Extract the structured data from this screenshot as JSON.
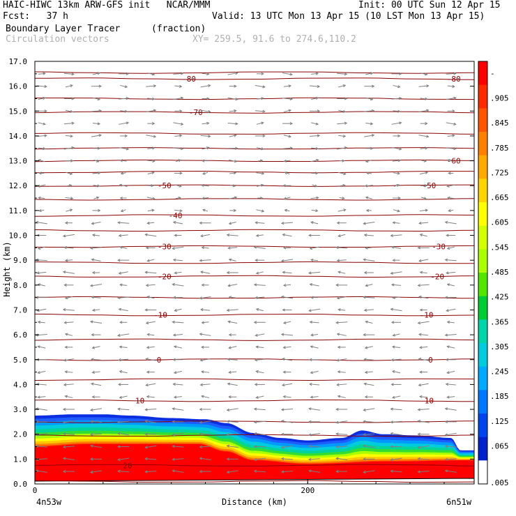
{
  "header": {
    "line1_left": "HAIC-HIWC 13km ARW-GFS init   NCAR/MMM",
    "line1_right": "Init: 00 UTC Sun 12 Apr 15",
    "line2_left": "Fcst:   37 h",
    "line2_right": "Valid: 13 UTC Mon 13 Apr 15 (10 LST Mon 13 Apr 15)",
    "line3_left": "Boundary Layer Tracer",
    "line3_mid": "(fraction)",
    "line4_left": "Circulation vectors",
    "line4_mid": "XY= 259.5, 91.6 to 274.6,110.2"
  },
  "colors": {
    "frame": "#000000",
    "isotherm": "#8b0000",
    "vector": "#7f7f7f",
    "labels": "#000000"
  },
  "chart_data": {
    "type": "heatmap",
    "title": "Boundary Layer Tracer",
    "units": "(fraction)",
    "xlabel": "Distance (km)",
    "ylabel": "Height (km)",
    "x_ticks": [
      {
        "value": 0,
        "label": "0"
      },
      {
        "value": 200,
        "label": "200"
      }
    ],
    "xlim": [
      0,
      322
    ],
    "x_end_labels": {
      "left": "4n53w",
      "right": "6n51w"
    },
    "ylim": [
      0,
      17
    ],
    "y_ticks": [
      0,
      1,
      2,
      3,
      4,
      5,
      6,
      7,
      8,
      9,
      10,
      11,
      12,
      13,
      14,
      15,
      16,
      17
    ],
    "y_tick_labels": [
      "0.0",
      "1.0",
      "2.0",
      "3.0",
      "4.0",
      "5.0",
      "6.0",
      "7.0",
      "8.0",
      "9.0",
      "10.0",
      "11.0",
      "12.0",
      "13.0",
      "14.0",
      "15.0",
      "16.0",
      "17.0"
    ],
    "colorbar": {
      "labels": [
        "-",
        ".905",
        ".845",
        ".785",
        ".725",
        ".665",
        ".605",
        ".545",
        ".485",
        ".425",
        ".365",
        ".305",
        ".245",
        ".185",
        ".125",
        ".065",
        ".005"
      ],
      "colors": [
        "#ff0000",
        "#ff2a00",
        "#ff5500",
        "#ff7f00",
        "#ffaa00",
        "#ffd400",
        "#ffff00",
        "#d4ff00",
        "#aaff00",
        "#55e600",
        "#00cc33",
        "#00d4aa",
        "#00ccdd",
        "#00aaff",
        "#0077ff",
        "#0044ee",
        "#0022cc",
        "#ffffff"
      ]
    },
    "boundary_layer_top": [
      {
        "x": 0,
        "y": 2.75
      },
      {
        "x": 30,
        "y": 2.8
      },
      {
        "x": 50,
        "y": 2.8
      },
      {
        "x": 70,
        "y": 2.75
      },
      {
        "x": 100,
        "y": 2.65
      },
      {
        "x": 125,
        "y": 2.6
      },
      {
        "x": 140,
        "y": 2.45
      },
      {
        "x": 160,
        "y": 2.05
      },
      {
        "x": 180,
        "y": 1.85
      },
      {
        "x": 200,
        "y": 1.75
      },
      {
        "x": 225,
        "y": 1.85
      },
      {
        "x": 240,
        "y": 2.15
      },
      {
        "x": 255,
        "y": 2.0
      },
      {
        "x": 280,
        "y": 1.95
      },
      {
        "x": 305,
        "y": 1.85
      },
      {
        "x": 312,
        "y": 1.35
      },
      {
        "x": 322,
        "y": 1.35
      }
    ],
    "high_tracer_top": [
      {
        "x": 0,
        "y": 1.5
      },
      {
        "x": 40,
        "y": 1.6
      },
      {
        "x": 90,
        "y": 1.6
      },
      {
        "x": 120,
        "y": 1.6
      },
      {
        "x": 140,
        "y": 1.3
      },
      {
        "x": 160,
        "y": 0.95
      },
      {
        "x": 200,
        "y": 0.8
      },
      {
        "x": 260,
        "y": 0.9
      },
      {
        "x": 322,
        "y": 0.95
      }
    ],
    "isotherms": [
      {
        "value": 20,
        "label": "20",
        "y_left": 0.75,
        "y_right": 0.75,
        "label_x": 68
      },
      {
        "value": 10,
        "label": "10",
        "y_left": 3.35,
        "y_right": 3.35,
        "label_x": 77
      },
      {
        "value": 10,
        "label": "10",
        "y_left": 3.35,
        "y_right": 3.35,
        "label_x": 289
      },
      {
        "value": 0,
        "label": "0",
        "y_left": 5.0,
        "y_right": 5.0,
        "label_x": 91
      },
      {
        "value": 0,
        "label": "0",
        "y_left": 5.0,
        "y_right": 5.0,
        "label_x": 290
      },
      {
        "value": -10,
        "label": "-10",
        "y_left": 6.8,
        "y_right": 6.8,
        "label_x": 92
      },
      {
        "value": -10,
        "label": "-10",
        "y_left": 6.8,
        "y_right": 6.8,
        "label_x": 287
      },
      {
        "value": -20,
        "label": "-20",
        "y_left": 8.35,
        "y_right": 8.35,
        "label_x": 95
      },
      {
        "value": -20,
        "label": "-20",
        "y_left": 8.35,
        "y_right": 8.35,
        "label_x": 295
      },
      {
        "value": -30,
        "label": "-30",
        "y_left": 9.55,
        "y_right": 9.55,
        "label_x": 95
      },
      {
        "value": -30,
        "label": "-30",
        "y_left": 9.55,
        "y_right": 9.55,
        "label_x": 296
      },
      {
        "value": -40,
        "label": "-40",
        "y_left": 10.8,
        "y_right": 10.8,
        "label_x": 103
      },
      {
        "value": -50,
        "label": "-50",
        "y_left": 12.0,
        "y_right": 12.0,
        "label_x": 95
      },
      {
        "value": -50,
        "label": "-50",
        "y_left": 12.0,
        "y_right": 12.0,
        "label_x": 289
      },
      {
        "value": -60,
        "label": "-60",
        "y_left": 13.0,
        "y_right": 13.0,
        "label_x": 307
      },
      {
        "value": -70,
        "label": "-70",
        "y_left": 14.95,
        "y_right": 14.95,
        "label_x": 118
      },
      {
        "value": -80,
        "label": "-80",
        "y_left": 16.3,
        "y_right": 16.3,
        "label_x": 113
      },
      {
        "value": -80,
        "label": "-80",
        "y_left": 16.3,
        "y_right": 16.3,
        "label_x": 307
      }
    ],
    "unlabeled_isotherm_levels": [
      0.1,
      1.95,
      2.5,
      4.2,
      5.8,
      7.5,
      8.9,
      10.2,
      11.45,
      12.55,
      13.5,
      14.1,
      15.5,
      16.55
    ],
    "vector_columns_x": [
      5,
      25,
      45,
      65,
      85,
      105,
      125,
      145,
      165,
      185,
      205,
      225,
      245,
      265,
      285,
      305
    ],
    "vector_rows_y": [
      0.5,
      1.0,
      1.5,
      2.0,
      2.5,
      3.0,
      3.5,
      4.0,
      4.5,
      5.0,
      5.5,
      6.0,
      6.5,
      7.0,
      7.5,
      8.0,
      8.5,
      9.0,
      9.5,
      10.0,
      10.5,
      11.0,
      11.5,
      12.0,
      12.5,
      13.0,
      13.5,
      14.0,
      14.5,
      15.0,
      15.5,
      16.0,
      16.5
    ],
    "grid": false,
    "legend": "right colorbar"
  }
}
